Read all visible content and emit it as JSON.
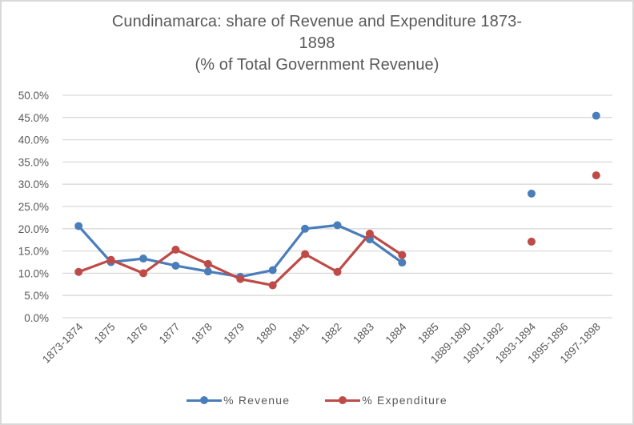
{
  "chart_data": {
    "type": "line",
    "title_lines": [
      "Cundinamarca: share of Revenue and Expenditure 1873-",
      "1898",
      "(% of Total Government Revenue)"
    ],
    "xlabel": "",
    "ylabel": "",
    "categories": [
      "1873-1874",
      "1875",
      "1876",
      "1877",
      "1878",
      "1879",
      "1880",
      "1881",
      "1882",
      "1883",
      "1884",
      "1885",
      "1889-1890",
      "1891-1892",
      "1893-1894",
      "1895-1896",
      "1897-1898"
    ],
    "ylim": [
      0,
      50
    ],
    "y_ticks": [
      0,
      5,
      10,
      15,
      20,
      25,
      30,
      35,
      40,
      45,
      50
    ],
    "y_tick_labels": [
      "0.0%",
      "5.0%",
      "10.0%",
      "15.0%",
      "20.0%",
      "25.0%",
      "30.0%",
      "35.0%",
      "40.0%",
      "45.0%",
      "50.0%"
    ],
    "grid": true,
    "legend_position": "bottom",
    "series": [
      {
        "name": "% Revenue",
        "color": "#4a7ebb",
        "values": [
          20.6,
          12.5,
          13.3,
          11.7,
          10.4,
          9.2,
          10.7,
          20.0,
          20.8,
          17.6,
          12.4,
          null,
          null,
          null,
          27.9,
          null,
          45.4
        ]
      },
      {
        "name": "% Expenditure",
        "color": "#be4b48",
        "values": [
          10.3,
          13.0,
          10.0,
          15.3,
          12.1,
          8.7,
          7.3,
          14.3,
          10.3,
          18.9,
          14.1,
          null,
          null,
          null,
          17.1,
          null,
          32.0
        ]
      }
    ]
  }
}
